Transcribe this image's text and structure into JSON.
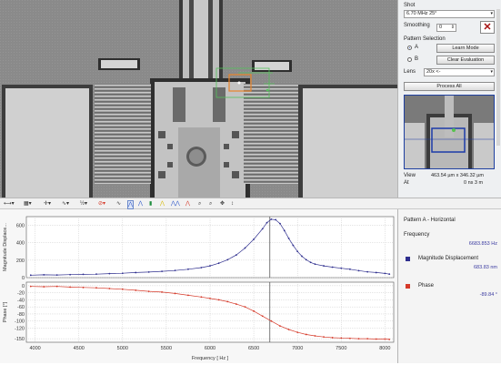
{
  "panel": {
    "shot_label": "Shot",
    "shot_value": "6.70 MHz 25°",
    "smoothing_label": "Smoothing",
    "smoothing_value": "0",
    "pattern_selection_label": "Pattern Selection",
    "option_a": "A",
    "option_b": "B",
    "learn_mode_label": "Learn Mode",
    "clear_evaluation_label": "Clear Evaluation",
    "lens_label": "Lens",
    "lens_value": "20x <-",
    "process_all_label": "Process All",
    "view_label": "View",
    "view_value": "463.54 µm x 346.32 µm",
    "at_label": "At",
    "at_value": "0 ns 3 m"
  },
  "toolbar": {
    "colors": {
      "red": "#d63a2a",
      "blue": "#2a55c9",
      "green": "#1e8e3e",
      "yellow": "#d6b800"
    }
  },
  "legend": {
    "title": "Pattern A - Horizontal",
    "frequency_label": "Frequency",
    "frequency_value": "6683.853 Hz",
    "magnitude_label": "Magnitude Displacement",
    "magnitude_value": "683.83 nm",
    "phase_label": "Phase",
    "phase_value": "-89.84 °",
    "magnitude_color": "#2e2e8e",
    "phase_color": "#d63a2a"
  },
  "chart_data": [
    {
      "type": "line",
      "ylabel": "Magnitude Displace...",
      "xlim": [
        3900,
        8100
      ],
      "ylim": [
        0,
        700
      ],
      "yticks": [
        0,
        200,
        400,
        600
      ],
      "cursor_x": 6683.853,
      "series": [
        {
          "name": "Magnitude Displacement",
          "color": "#2e2e8e",
          "x": [
            3950,
            4100,
            4250,
            4400,
            4550,
            4700,
            4850,
            5000,
            5150,
            5300,
            5450,
            5600,
            5750,
            5900,
            6000,
            6100,
            6200,
            6300,
            6400,
            6500,
            6600,
            6650,
            6700,
            6750,
            6800,
            6850,
            6900,
            6950,
            7000,
            7050,
            7100,
            7150,
            7200,
            7300,
            7400,
            7500,
            7600,
            7700,
            7800,
            7900,
            8000,
            8050
          ],
          "y": [
            28,
            32,
            30,
            34,
            38,
            40,
            46,
            50,
            58,
            64,
            72,
            82,
            96,
            115,
            135,
            165,
            205,
            260,
            340,
            440,
            560,
            630,
            670,
            665,
            620,
            540,
            450,
            370,
            300,
            245,
            205,
            175,
            155,
            135,
            120,
            108,
            96,
            80,
            66,
            58,
            48,
            40
          ]
        }
      ]
    },
    {
      "type": "line",
      "xlabel": "Frequency [ Hz ]",
      "ylabel": "Phase [°]",
      "xlim": [
        3900,
        8100
      ],
      "ylim": [
        -160,
        10
      ],
      "yticks": [
        0,
        -20,
        -40,
        -60,
        -80,
        -100,
        -120,
        -150
      ],
      "xticks": [
        4000,
        4500,
        5000,
        5500,
        6000,
        6500,
        7000,
        7500,
        8000
      ],
      "cursor_x": 6683.853,
      "series": [
        {
          "name": "Phase",
          "color": "#d63a2a",
          "x": [
            3950,
            4100,
            4250,
            4400,
            4550,
            4700,
            4850,
            5000,
            5150,
            5300,
            5450,
            5600,
            5750,
            5900,
            6000,
            6100,
            6200,
            6300,
            6400,
            6500,
            6600,
            6700,
            6800,
            6900,
            7000,
            7100,
            7200,
            7300,
            7400,
            7500,
            7600,
            7700,
            7800,
            7900,
            8000,
            8050
          ],
          "y": [
            -2,
            -3,
            -2,
            -4,
            -5,
            -6,
            -8,
            -10,
            -13,
            -16,
            -18,
            -22,
            -27,
            -32,
            -36,
            -40,
            -45,
            -52,
            -60,
            -72,
            -86,
            -100,
            -114,
            -124,
            -132,
            -138,
            -142,
            -145,
            -147,
            -148,
            -149,
            -150,
            -150,
            -151,
            -151,
            -152
          ]
        }
      ]
    }
  ]
}
